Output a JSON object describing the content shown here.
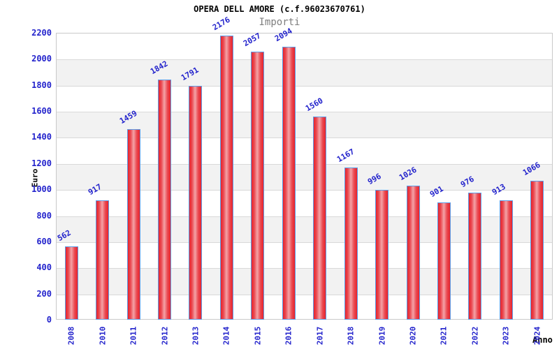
{
  "chart": {
    "title": "OPERA DELL AMORE (c.f.96023670761)",
    "subtitle": "Importi",
    "ylabel": "Euro",
    "xlabel": "Anno",
    "colors": {
      "label_blue": "#2323cc",
      "bar_red": "#e8232b",
      "bar_highlight": "#f4a3a7",
      "bar_border_blue": "#5c9ce6",
      "band_gray": "#f2f2f2",
      "band_white": "#ffffff",
      "gridline_gray": "#d9d9d9",
      "plot_border_gray": "#c9c9c9",
      "subtitle_gray": "#7f7f7f",
      "title_black": "#000000"
    }
  },
  "chart_data": {
    "type": "bar",
    "title": "OPERA DELL AMORE (c.f.96023670761)",
    "subtitle": "Importi",
    "xlabel": "Anno",
    "ylabel": "Euro",
    "categories": [
      "2008",
      "2010",
      "2011",
      "2012",
      "2013",
      "2014",
      "2015",
      "2016",
      "2017",
      "2018",
      "2019",
      "2020",
      "2021",
      "2022",
      "2023",
      "2024"
    ],
    "values": [
      562,
      917,
      1459,
      1842,
      1791,
      2176,
      2057,
      2094,
      1560,
      1167,
      996,
      1026,
      901,
      976,
      913,
      1066
    ],
    "ylim": [
      0,
      2200
    ],
    "ytick_step": 200,
    "yticks": [
      "0",
      "200",
      "400",
      "600",
      "800",
      "1000",
      "1200",
      "1400",
      "1600",
      "1800",
      "2000",
      "2200"
    ],
    "grid": true,
    "legend": false,
    "bands": "alternating gray/white every 200 units",
    "bar_value_labels": true
  }
}
